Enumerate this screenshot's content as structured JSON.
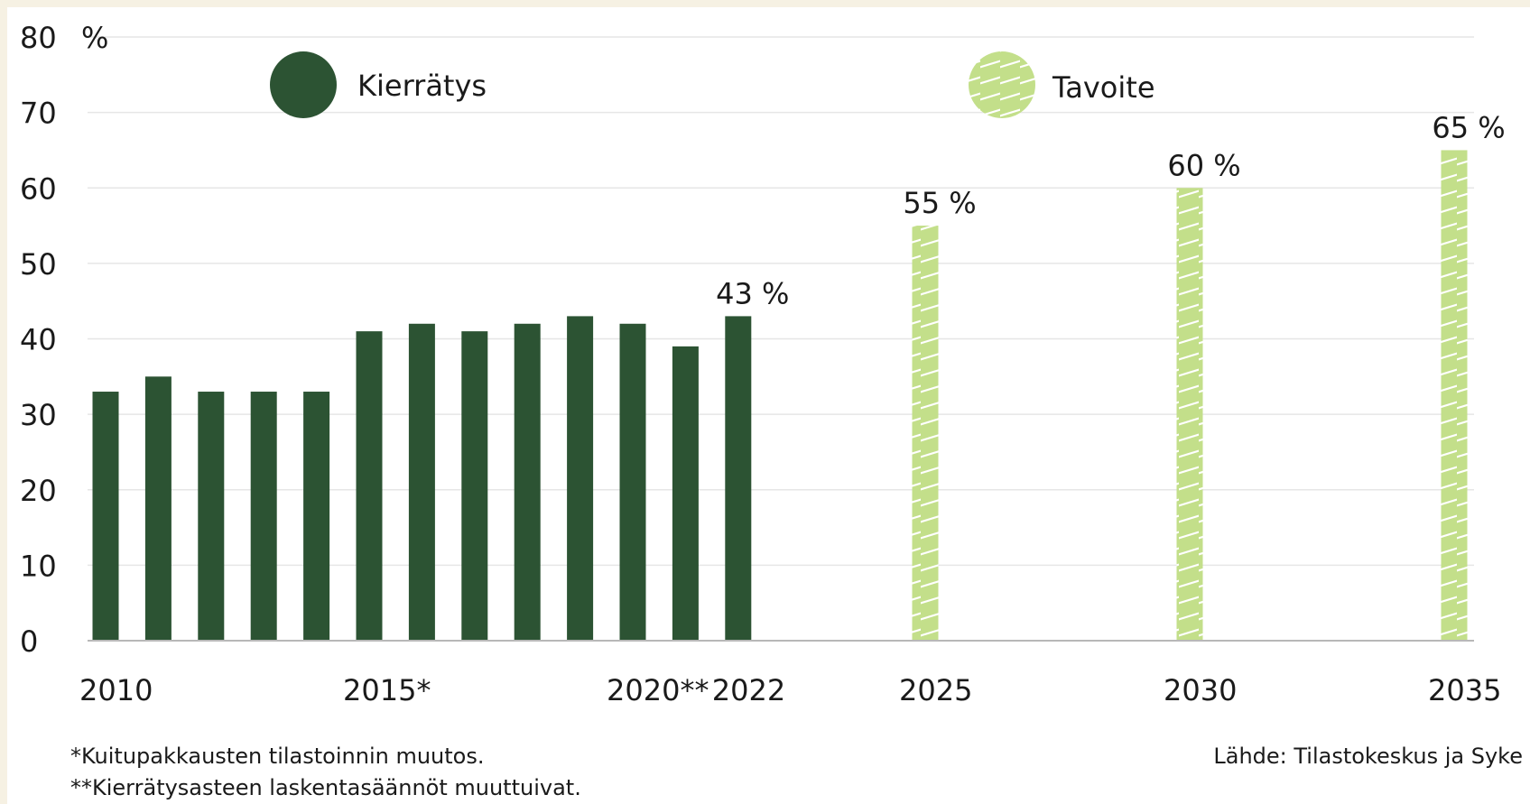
{
  "chart_data": {
    "type": "bar",
    "title": "",
    "ylabel": "",
    "xlabel": "",
    "unit": "%",
    "y_axis_top_label": "80",
    "y_axis_unit_label": "%",
    "ylim": [
      0,
      80
    ],
    "yticks": [
      0,
      10,
      20,
      30,
      40,
      50,
      60,
      70,
      80
    ],
    "grid": true,
    "legend_position": "top",
    "series": [
      {
        "name": "Kierrätys",
        "color": "#2c5333",
        "pattern": "solid",
        "points": [
          {
            "x": 2010,
            "y": 33
          },
          {
            "x": 2011,
            "y": 35
          },
          {
            "x": 2012,
            "y": 33
          },
          {
            "x": 2013,
            "y": 33
          },
          {
            "x": 2014,
            "y": 33
          },
          {
            "x": 2015,
            "y": 41
          },
          {
            "x": 2016,
            "y": 42
          },
          {
            "x": 2017,
            "y": 41
          },
          {
            "x": 2018,
            "y": 42
          },
          {
            "x": 2019,
            "y": 43
          },
          {
            "x": 2020,
            "y": 42
          },
          {
            "x": 2021,
            "y": 39
          },
          {
            "x": 2022,
            "y": 43
          }
        ]
      },
      {
        "name": "Tavoite",
        "color": "#c3df8a",
        "pattern": "diagonal-stripes",
        "points": [
          {
            "x": 2025,
            "y": 55
          },
          {
            "x": 2030,
            "y": 60
          },
          {
            "x": 2035,
            "y": 65
          }
        ]
      }
    ],
    "x_tick_labels": [
      {
        "x": 2010,
        "text": "2010"
      },
      {
        "x": 2015,
        "text": "2015*"
      },
      {
        "x": 2020,
        "text": "2020**"
      },
      {
        "x": 2022,
        "text": "2022"
      },
      {
        "x": 2025,
        "text": "2025"
      },
      {
        "x": 2030,
        "text": "2030"
      },
      {
        "x": 2035,
        "text": "2035"
      }
    ],
    "data_labels": [
      {
        "x": 2022,
        "y": 43,
        "text": "43 %"
      },
      {
        "x": 2025,
        "y": 55,
        "text": "55 %"
      },
      {
        "x": 2030,
        "y": 60,
        "text": "60 %"
      },
      {
        "x": 2035,
        "y": 65,
        "text": "65 %"
      }
    ],
    "footnotes": [
      "*Kuitupakkausten tilastoinnin muutos.",
      "**Kierrätysasteen laskentasäännöt muuttuivat."
    ],
    "source": "Lähde: Tilastokeskus ja Syke"
  }
}
